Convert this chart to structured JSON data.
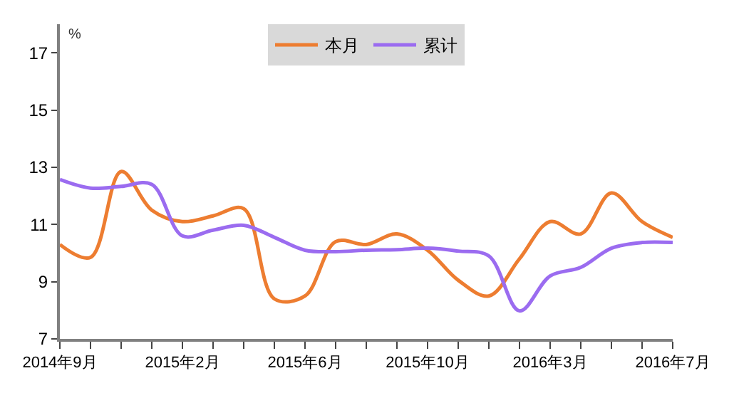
{
  "chart_data": {
    "type": "line",
    "ylabel": "%",
    "categories": [
      "2014年9月",
      null,
      null,
      null,
      "2015年2月",
      null,
      null,
      null,
      "2015年6月",
      null,
      null,
      null,
      "2015年10月",
      null,
      null,
      null,
      "2016年3月",
      null,
      null,
      null,
      "2016年7月"
    ],
    "series": [
      {
        "name": "本月",
        "color": "#ed7d31",
        "values": [
          10.3,
          9.85,
          12.85,
          11.5,
          11.1,
          11.3,
          11.55,
          8.4,
          8.5,
          10.4,
          10.3,
          10.67,
          10.1,
          9.05,
          8.5,
          9.8,
          11.1,
          10.67,
          12.1,
          11.1,
          10.55
        ]
      },
      {
        "name": "累计",
        "color": "#9b6cf0",
        "values": [
          12.57,
          12.27,
          12.33,
          12.4,
          10.6,
          10.8,
          10.97,
          10.55,
          10.1,
          10.05,
          10.1,
          10.12,
          10.17,
          10.07,
          9.9,
          7.98,
          9.2,
          9.5,
          10.17,
          10.37,
          10.37
        ]
      }
    ],
    "ylim": [
      7,
      18
    ],
    "yticks": [
      7,
      9,
      11,
      13,
      15,
      17
    ],
    "legend": "top",
    "marker": "none",
    "line_style": "solid"
  }
}
